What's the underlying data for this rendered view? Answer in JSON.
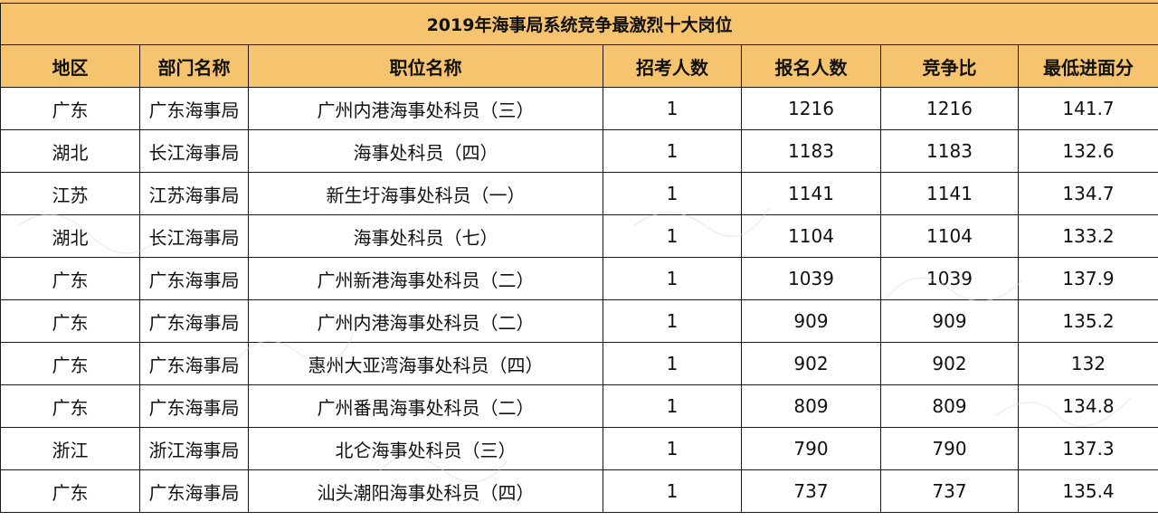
{
  "table": {
    "title": "2019年海事局系统竞争最激烈十大岗位",
    "headers": [
      "地区",
      "部门名称",
      "职位名称",
      "招考人数",
      "报名人数",
      "竞争比",
      "最低进面分"
    ],
    "rows": [
      [
        "广东",
        "广东海事局",
        "广州内港海事处科员（三）",
        "1",
        "1216",
        "1216",
        "141.7"
      ],
      [
        "湖北",
        "长江海事局",
        "海事处科员（四）",
        "1",
        "1183",
        "1183",
        "132.6"
      ],
      [
        "江苏",
        "江苏海事局",
        "新生圩海事处科员（一）",
        "1",
        "1141",
        "1141",
        "134.7"
      ],
      [
        "湖北",
        "长江海事局",
        "海事处科员（七）",
        "1",
        "1104",
        "1104",
        "133.2"
      ],
      [
        "广东",
        "广东海事局",
        "广州新港海事处科员（二）",
        "1",
        "1039",
        "1039",
        "137.9"
      ],
      [
        "广东",
        "广东海事局",
        "广州内港海事处科员（二）",
        "1",
        "909",
        "909",
        "135.2"
      ],
      [
        "广东",
        "广东海事局",
        "惠州大亚湾海事处科员（四）",
        "1",
        "902",
        "902",
        "132"
      ],
      [
        "广东",
        "广东海事局",
        "广州番禺海事处科员（二）",
        "1",
        "809",
        "809",
        "134.8"
      ],
      [
        "浙江",
        "浙江海事局",
        "北仑海事处科员（三）",
        "1",
        "790",
        "790",
        "137.3"
      ],
      [
        "广东",
        "广东海事局",
        "汕头潮阳海事处科员（四）",
        "1",
        "737",
        "737",
        "135.4"
      ]
    ]
  },
  "colors": {
    "header_fill": "#f6c46f",
    "border": "#1a1a1a"
  }
}
